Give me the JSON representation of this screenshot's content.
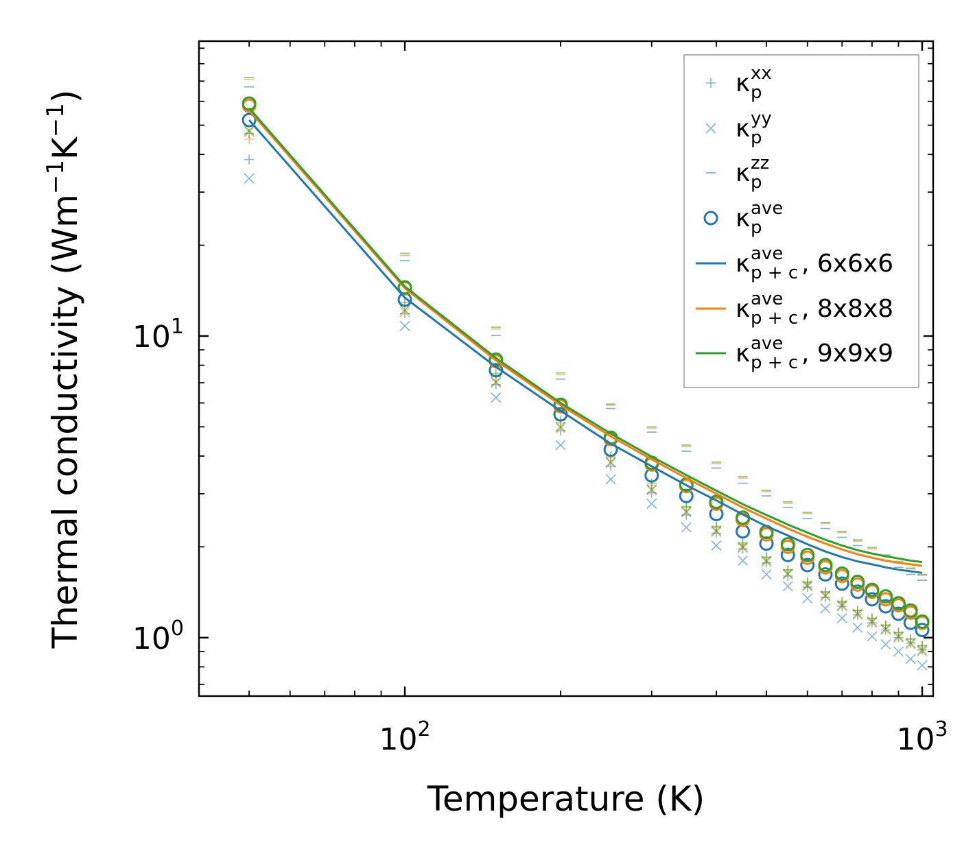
{
  "chart_data": {
    "type": "scatter",
    "title": "",
    "xlabel": "Temperature (K)",
    "ylabel_main": "Thermal conductivity (Wm",
    "ylabel_exp": "−1",
    "ylabel_unit2": "K",
    "ylabel_end": ")",
    "xscale": "log",
    "yscale": "log",
    "xlim": [
      40,
      1050
    ],
    "ylim": [
      0.64,
      95
    ],
    "x_major_ticks": [
      {
        "value": 100,
        "base": "10",
        "exp": "2"
      },
      {
        "value": 1000,
        "base": "10",
        "exp": "3"
      }
    ],
    "y_major_ticks": [
      {
        "value": 1,
        "base": "10",
        "exp": "0"
      },
      {
        "value": 10,
        "base": "10",
        "exp": "1"
      }
    ],
    "legend_position": "top-right",
    "legend": [
      {
        "marker": "plus",
        "color": "#1f77b4",
        "alpha": 0.55,
        "label": "κ",
        "sub": "p",
        "sup": "xx",
        "tail": ""
      },
      {
        "marker": "x",
        "color": "#1f77b4",
        "alpha": 0.55,
        "label": "κ",
        "sub": "p",
        "sup": "yy",
        "tail": ""
      },
      {
        "marker": "hline",
        "color": "#1f77b4",
        "alpha": 0.55,
        "label": "κ",
        "sub": "p",
        "sup": "zz",
        "tail": ""
      },
      {
        "marker": "circle",
        "color": "#1f77b4",
        "alpha": 1.0,
        "label": "κ",
        "sub": "p",
        "sup": "ave",
        "tail": ""
      },
      {
        "marker": "line",
        "color": "#1f77b4",
        "alpha": 1.0,
        "label": "κ",
        "sub": "p + c",
        "sup": "ave",
        "tail": ", 6x6x6"
      },
      {
        "marker": "line",
        "color": "#ff7f0e",
        "alpha": 1.0,
        "label": "κ",
        "sub": "p + c",
        "sup": "ave",
        "tail": ", 8x8x8"
      },
      {
        "marker": "line",
        "color": "#2ca02c",
        "alpha": 1.0,
        "label": "κ",
        "sub": "p + c",
        "sup": "ave",
        "tail": ", 9x9x9"
      }
    ],
    "x": [
      50,
      100,
      150,
      200,
      250,
      300,
      350,
      400,
      450,
      500,
      550,
      600,
      650,
      700,
      750,
      800,
      850,
      900,
      950,
      1000
    ],
    "series": [
      {
        "name": "6x6x6",
        "color": "#1f77b4",
        "kxx": [
          38.5,
          11.9,
          6.9,
          4.85,
          3.7,
          3.02,
          2.55,
          2.22,
          1.97,
          1.77,
          1.6,
          1.47,
          1.36,
          1.27,
          1.19,
          1.12,
          1.06,
          1.0,
          0.96,
          0.91
        ],
        "kyy": [
          33.3,
          10.8,
          6.25,
          4.35,
          3.35,
          2.78,
          2.32,
          2.02,
          1.8,
          1.62,
          1.48,
          1.35,
          1.25,
          1.16,
          1.08,
          1.01,
          0.95,
          0.9,
          0.85,
          0.81
        ],
        "kzz": [
          67.0,
          17.8,
          10.05,
          7.2,
          5.75,
          4.8,
          4.15,
          3.65,
          3.25,
          2.95,
          2.7,
          2.48,
          2.3,
          2.15,
          2.02,
          1.9,
          1.8,
          1.71,
          1.62,
          1.55
        ],
        "kave": [
          52.0,
          13.2,
          7.7,
          5.5,
          4.2,
          3.45,
          2.95,
          2.57,
          2.25,
          2.05,
          1.88,
          1.74,
          1.62,
          1.51,
          1.42,
          1.34,
          1.27,
          1.2,
          1.12,
          1.06
        ],
        "kpc": [
          52.0,
          13.4,
          7.9,
          5.65,
          4.4,
          3.7,
          3.2,
          2.85,
          2.56,
          2.34,
          2.18,
          2.04,
          1.93,
          1.85,
          1.79,
          1.75,
          1.71,
          1.68,
          1.66,
          1.64
        ]
      },
      {
        "name": "8x8x8",
        "color": "#ff7f0e",
        "kxx": [
          45.0,
          12.6,
          7.35,
          5.15,
          3.95,
          3.2,
          2.7,
          2.32,
          2.04,
          1.84,
          1.67,
          1.52,
          1.41,
          1.31,
          1.23,
          1.16,
          1.1,
          1.04,
          0.99,
          0.94
        ],
        "kyy": [
          47.5,
          12.0,
          7.0,
          4.95,
          3.8,
          3.08,
          2.6,
          2.24,
          1.98,
          1.78,
          1.62,
          1.48,
          1.37,
          1.27,
          1.19,
          1.12,
          1.06,
          1.0,
          0.95,
          0.9
        ],
        "kzz": [
          71.0,
          18.5,
          10.55,
          7.45,
          5.9,
          4.95,
          4.3,
          3.78,
          3.38,
          3.05,
          2.79,
          2.58,
          2.39,
          2.23,
          2.09,
          1.97,
          1.87,
          1.77,
          1.69,
          1.61
        ],
        "kave": [
          58.0,
          14.4,
          8.25,
          5.85,
          4.55,
          3.75,
          3.18,
          2.78,
          2.46,
          2.2,
          2.0,
          1.84,
          1.71,
          1.6,
          1.5,
          1.42,
          1.34,
          1.28,
          1.21,
          1.12
        ],
        "kpc": [
          56.0,
          14.4,
          8.3,
          5.9,
          4.65,
          3.9,
          3.38,
          3.0,
          2.7,
          2.48,
          2.3,
          2.16,
          2.05,
          1.96,
          1.89,
          1.84,
          1.8,
          1.77,
          1.75,
          1.73
        ]
      },
      {
        "name": "9x9x9",
        "color": "#2ca02c",
        "kxx": [
          47.0,
          12.9,
          7.5,
          5.25,
          4.0,
          3.25,
          2.72,
          2.34,
          2.06,
          1.85,
          1.68,
          1.53,
          1.42,
          1.32,
          1.23,
          1.16,
          1.1,
          1.04,
          0.99,
          0.94
        ],
        "kyy": [
          48.0,
          12.2,
          7.05,
          5.0,
          3.82,
          3.1,
          2.62,
          2.26,
          2.0,
          1.8,
          1.63,
          1.49,
          1.38,
          1.28,
          1.2,
          1.13,
          1.07,
          1.01,
          0.96,
          0.91
        ],
        "kzz": [
          72.0,
          18.8,
          10.7,
          7.55,
          5.95,
          5.0,
          4.35,
          3.82,
          3.42,
          3.08,
          2.82,
          2.6,
          2.41,
          2.25,
          2.11,
          1.99,
          1.88,
          1.79,
          1.7,
          1.62
        ],
        "kave": [
          59.0,
          14.5,
          8.35,
          5.92,
          4.6,
          3.8,
          3.22,
          2.82,
          2.5,
          2.24,
          2.04,
          1.88,
          1.74,
          1.63,
          1.53,
          1.44,
          1.37,
          1.3,
          1.23,
          1.13
        ],
        "kpc": [
          57.0,
          14.6,
          8.45,
          6.0,
          4.75,
          3.98,
          3.46,
          3.07,
          2.77,
          2.55,
          2.37,
          2.23,
          2.11,
          2.02,
          1.95,
          1.9,
          1.86,
          1.83,
          1.8,
          1.78
        ]
      }
    ]
  }
}
